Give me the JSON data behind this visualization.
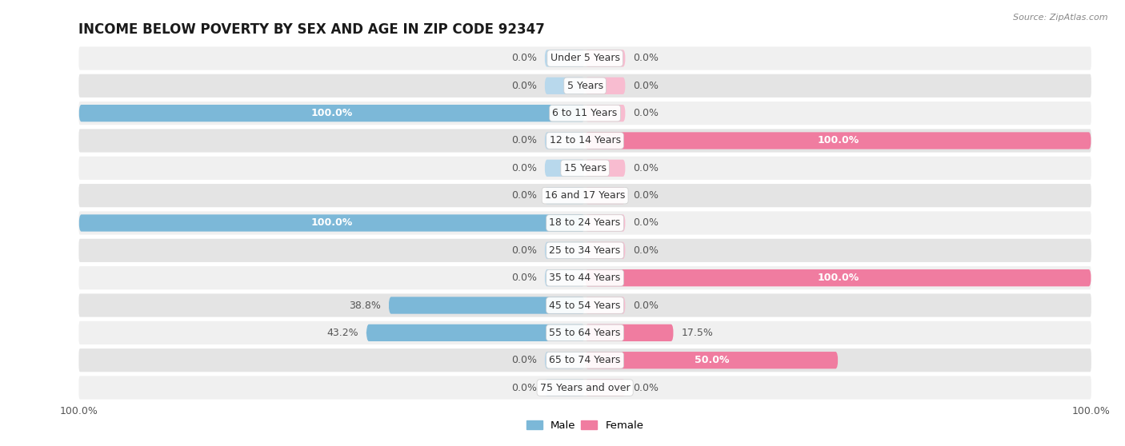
{
  "title": "INCOME BELOW POVERTY BY SEX AND AGE IN ZIP CODE 92347",
  "source": "Source: ZipAtlas.com",
  "categories": [
    "Under 5 Years",
    "5 Years",
    "6 to 11 Years",
    "12 to 14 Years",
    "15 Years",
    "16 and 17 Years",
    "18 to 24 Years",
    "25 to 34 Years",
    "35 to 44 Years",
    "45 to 54 Years",
    "55 to 64 Years",
    "65 to 74 Years",
    "75 Years and over"
  ],
  "male": [
    0.0,
    0.0,
    100.0,
    0.0,
    0.0,
    0.0,
    100.0,
    0.0,
    0.0,
    38.8,
    43.2,
    0.0,
    0.0
  ],
  "female": [
    0.0,
    0.0,
    0.0,
    100.0,
    0.0,
    0.0,
    0.0,
    0.0,
    100.0,
    0.0,
    17.5,
    50.0,
    0.0
  ],
  "male_color": "#7cb8d8",
  "female_color": "#f07ca0",
  "male_stub_color": "#b8d8ec",
  "female_stub_color": "#f8bcd0",
  "row_bg_light": "#f0f0f0",
  "row_bg_dark": "#e4e4e4",
  "xlim": 100.0,
  "bar_height": 0.62,
  "stub_pct": 8.0,
  "title_fontsize": 12,
  "label_fontsize": 9,
  "tick_fontsize": 9
}
